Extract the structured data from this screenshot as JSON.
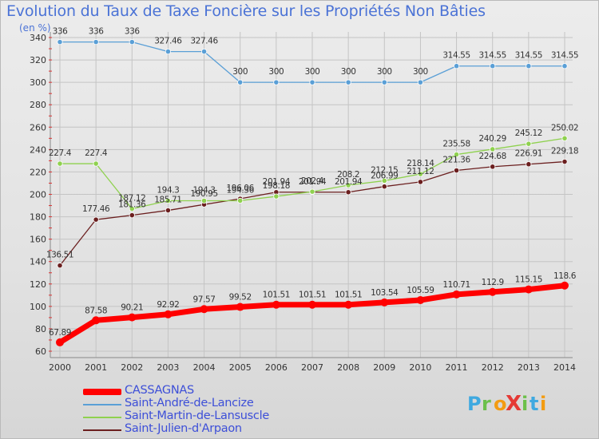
{
  "chart_data": {
    "type": "line",
    "title": "Evolution du Taux de Taxe Foncière sur les Propriétés Non Bâties",
    "unit_label": "(en %)",
    "x": [
      "2000",
      "2001",
      "2002",
      "2003",
      "2004",
      "2005",
      "2006",
      "2007",
      "2008",
      "2009",
      "2010",
      "2011",
      "2012",
      "2013",
      "2014"
    ],
    "ylim": [
      60,
      340
    ],
    "yticks": [
      60,
      80,
      100,
      120,
      140,
      160,
      180,
      200,
      220,
      240,
      260,
      280,
      300,
      320,
      340
    ],
    "grid": true,
    "legend_position": "bottom-left",
    "series": [
      {
        "name": "CASSAGNAS",
        "color": "#ff0000",
        "values": [
          67.89,
          87.58,
          90.21,
          92.92,
          97.57,
          99.52,
          101.51,
          101.51,
          101.51,
          103.54,
          105.59,
          110.71,
          112.9,
          115.15,
          118.6
        ],
        "labels": [
          "67.89",
          "87.58",
          "90.21",
          "92.92",
          "97.57",
          "99.52",
          "101.51",
          "101.51",
          "101.51",
          "103.54",
          "105.59",
          "110.71",
          "112.9",
          "115.15",
          "118.6"
        ]
      },
      {
        "name": "Saint-André-de-Lancize",
        "color": "#5a9fd6",
        "values": [
          336,
          336,
          336,
          327.46,
          327.46,
          300,
          300,
          300,
          300,
          300,
          300,
          314.55,
          314.55,
          314.55,
          314.55
        ],
        "labels": [
          "336",
          "336",
          "336",
          "327.46",
          "327.46",
          "300",
          "300",
          "300",
          "300",
          "300",
          "300",
          "314.55",
          "314.55",
          "314.55",
          "314.55"
        ]
      },
      {
        "name": "Saint-Martin-de-Lansuscle",
        "color": "#8fd14f",
        "values": [
          227.4,
          227.4,
          187.12,
          194.3,
          194.3,
          194.36,
          198.18,
          202.4,
          208.2,
          212.15,
          218.14,
          235.58,
          240.29,
          245.12,
          250.02
        ],
        "labels": [
          "227.4",
          "227.4",
          "187.12",
          "194.3",
          "194.3",
          "194.36",
          "198.18",
          "202.4",
          "208.2",
          "212.15",
          "218.14",
          "235.58",
          "240.29",
          "245.12",
          "250.02"
        ]
      },
      {
        "name": "Saint-Julien-d'Arpaon",
        "color": "#6b1f1f",
        "values": [
          136.51,
          177.46,
          181.36,
          185.71,
          190.95,
          196.06,
          201.94,
          201.94,
          201.94,
          206.99,
          211.12,
          221.36,
          224.68,
          226.91,
          229.18
        ],
        "labels": [
          "136.51",
          "177.46",
          "181.36",
          "185.71",
          "190.95",
          "196.06",
          "201.94",
          "201.94",
          "201.94",
          "206.99",
          "211.12",
          "221.36",
          "224.68",
          "226.91",
          "229.18"
        ]
      }
    ]
  },
  "brand": {
    "text": "ProXiti",
    "letters": [
      "P",
      "r",
      "o",
      "X",
      "i",
      "t",
      "i"
    ],
    "colors": [
      "#3fa9e0",
      "#6cc04a",
      "#f39c12",
      "#e53935",
      "#6cc04a",
      "#3fa9e0",
      "#f39c12"
    ]
  }
}
